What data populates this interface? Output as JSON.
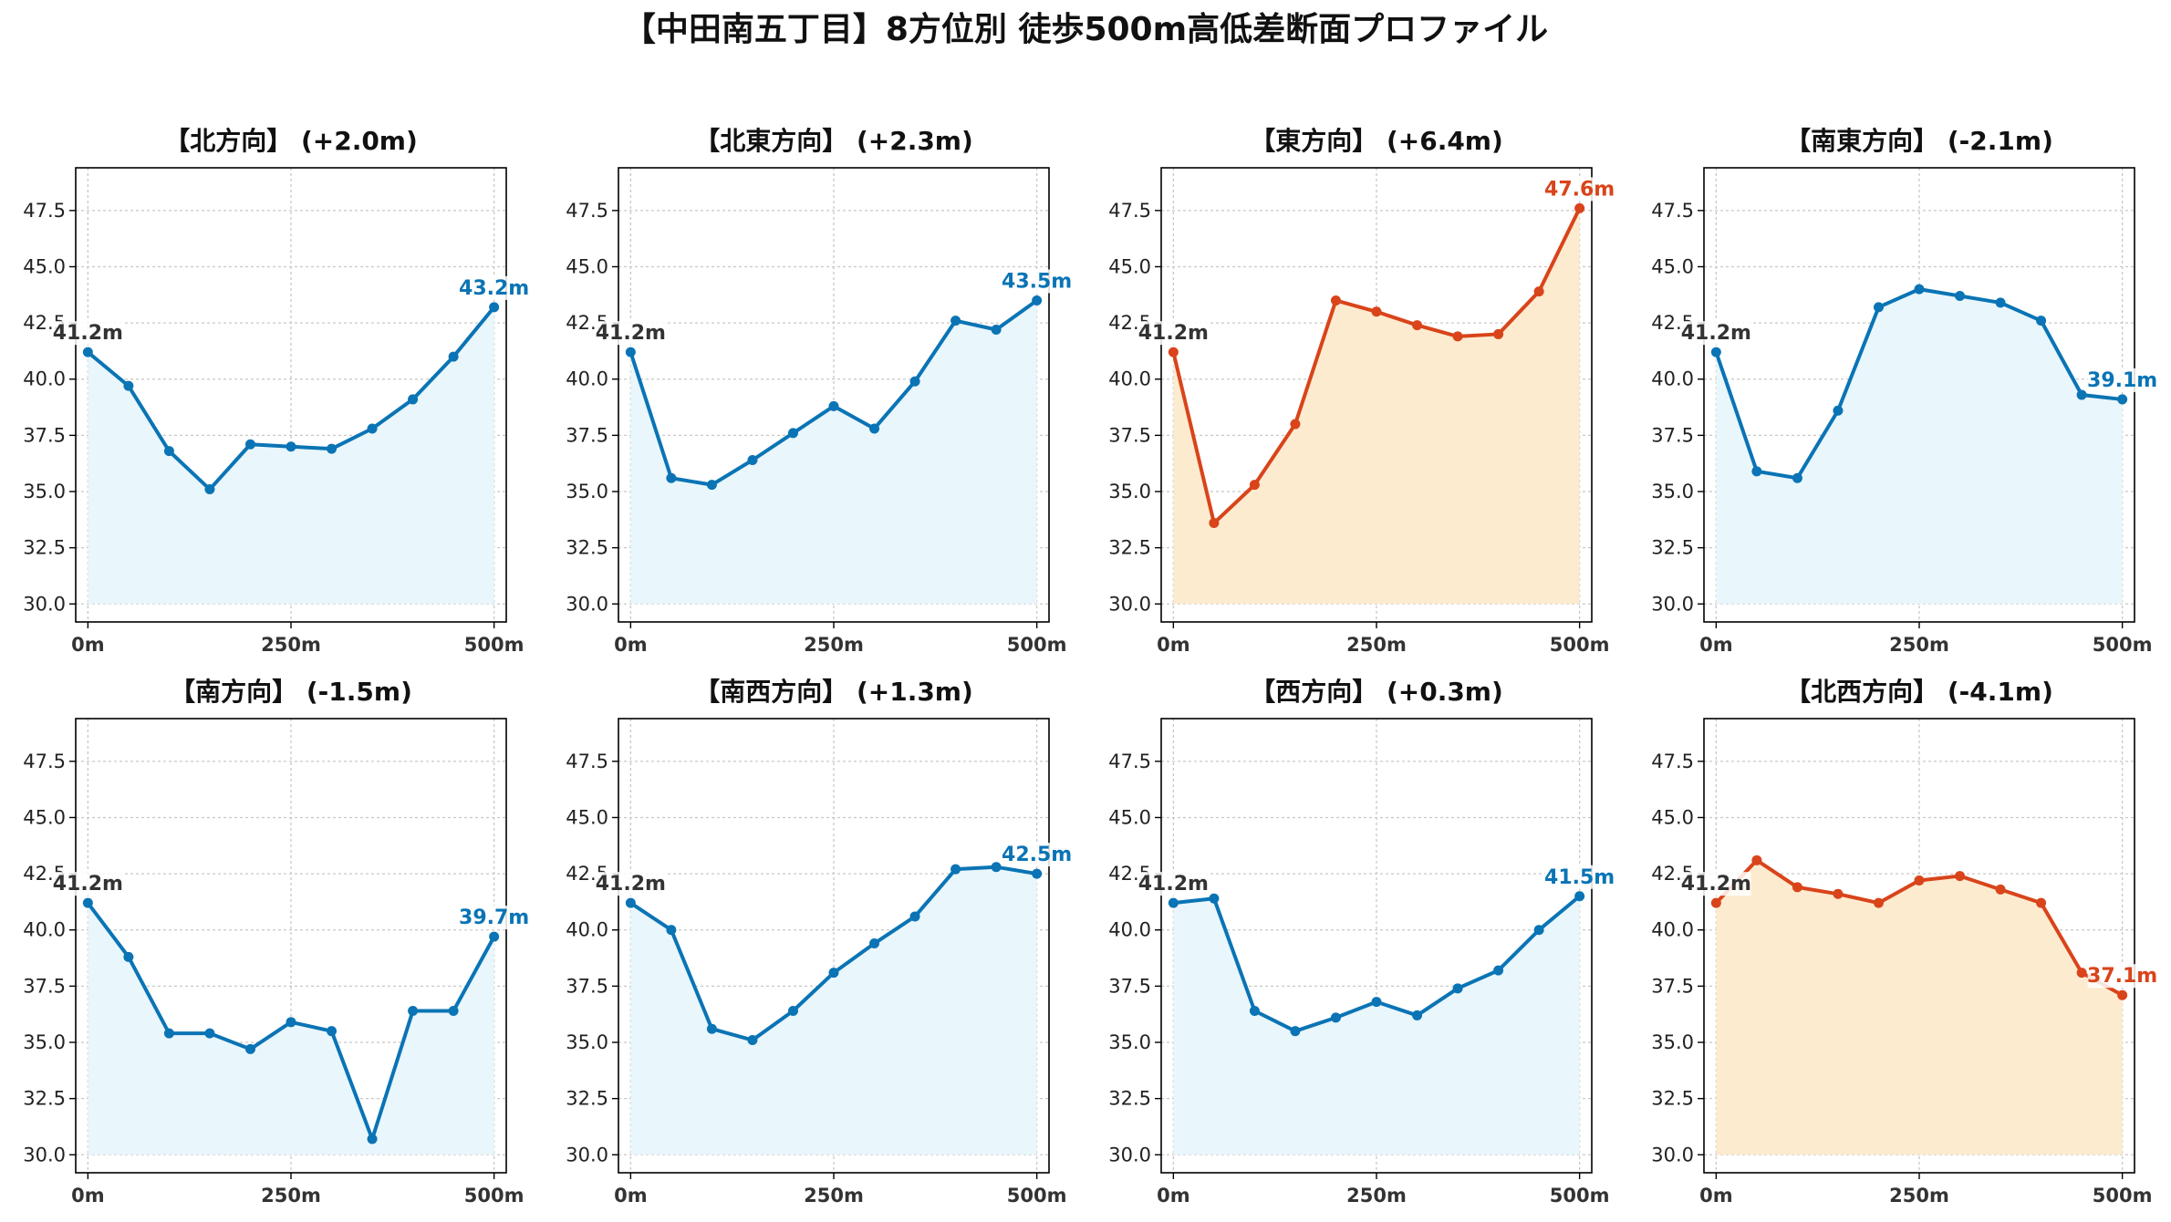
{
  "suptitle": "【中田南五丁目】8方位別 徒歩500m高低差断面プロファイル",
  "colors": {
    "up_line": "#d9441a",
    "up_fill": "#fdebd0",
    "down_line": "#0a74b5",
    "down_fill": "#e9f6fb",
    "start_label": "#333333",
    "grid": "#c8c8c8"
  },
  "chart_data": [
    {
      "type": "line",
      "title": "【北方向】 (+2.0m)",
      "x": [
        0,
        50,
        100,
        150,
        200,
        250,
        300,
        350,
        400,
        450,
        500
      ],
      "values": [
        41.2,
        39.7,
        36.8,
        35.1,
        37.1,
        37.0,
        36.9,
        37.8,
        39.1,
        41.0,
        43.2
      ],
      "start_label": "41.2m",
      "end_label": "43.2m",
      "theme": "down",
      "xticks": [
        "0m",
        "250m",
        "500m"
      ],
      "xlim": [
        -15,
        515
      ],
      "ylim": [
        29.2,
        49.4
      ],
      "yticks": [
        "30.0",
        "32.5",
        "35.0",
        "37.5",
        "40.0",
        "42.5",
        "45.0",
        "47.5"
      ],
      "grid": true
    },
    {
      "type": "line",
      "title": "【北東方向】 (+2.3m)",
      "x": [
        0,
        50,
        100,
        150,
        200,
        250,
        300,
        350,
        400,
        450,
        500
      ],
      "values": [
        41.2,
        35.6,
        35.3,
        36.4,
        37.6,
        38.8,
        37.8,
        39.9,
        42.6,
        42.2,
        43.5
      ],
      "start_label": "41.2m",
      "end_label": "43.5m",
      "theme": "down",
      "xticks": [
        "0m",
        "250m",
        "500m"
      ],
      "xlim": [
        -15,
        515
      ],
      "ylim": [
        29.2,
        49.4
      ],
      "yticks": [
        "30.0",
        "32.5",
        "35.0",
        "37.5",
        "40.0",
        "42.5",
        "45.0",
        "47.5"
      ],
      "grid": true
    },
    {
      "type": "line",
      "title": "【東方向】 (+6.4m)",
      "x": [
        0,
        50,
        100,
        150,
        200,
        250,
        300,
        350,
        400,
        450,
        500
      ],
      "values": [
        41.2,
        33.6,
        35.3,
        38.0,
        43.5,
        43.0,
        42.4,
        41.9,
        42.0,
        43.9,
        47.6
      ],
      "start_label": "41.2m",
      "end_label": "47.6m",
      "theme": "up",
      "xticks": [
        "0m",
        "250m",
        "500m"
      ],
      "xlim": [
        -15,
        515
      ],
      "ylim": [
        29.2,
        49.4
      ],
      "yticks": [
        "30.0",
        "32.5",
        "35.0",
        "37.5",
        "40.0",
        "42.5",
        "45.0",
        "47.5"
      ],
      "grid": true
    },
    {
      "type": "line",
      "title": "【南東方向】 (-2.1m)",
      "x": [
        0,
        50,
        100,
        150,
        200,
        250,
        300,
        350,
        400,
        450,
        500
      ],
      "values": [
        41.2,
        35.9,
        35.6,
        38.6,
        43.2,
        44.0,
        43.7,
        43.4,
        42.6,
        39.3,
        39.1
      ],
      "start_label": "41.2m",
      "end_label": "39.1m",
      "theme": "down",
      "xticks": [
        "0m",
        "250m",
        "500m"
      ],
      "xlim": [
        -15,
        515
      ],
      "ylim": [
        29.2,
        49.4
      ],
      "yticks": [
        "30.0",
        "32.5",
        "35.0",
        "37.5",
        "40.0",
        "42.5",
        "45.0",
        "47.5"
      ],
      "grid": true
    },
    {
      "type": "line",
      "title": "【南方向】 (-1.5m)",
      "x": [
        0,
        50,
        100,
        150,
        200,
        250,
        300,
        350,
        400,
        450,
        500
      ],
      "values": [
        41.2,
        38.8,
        35.4,
        35.4,
        34.7,
        35.9,
        35.5,
        30.7,
        36.4,
        36.4,
        39.7
      ],
      "start_label": "41.2m",
      "end_label": "39.7m",
      "theme": "down",
      "xticks": [
        "0m",
        "250m",
        "500m"
      ],
      "xlim": [
        -15,
        515
      ],
      "ylim": [
        29.2,
        49.4
      ],
      "yticks": [
        "30.0",
        "32.5",
        "35.0",
        "37.5",
        "40.0",
        "42.5",
        "45.0",
        "47.5"
      ],
      "grid": true
    },
    {
      "type": "line",
      "title": "【南西方向】 (+1.3m)",
      "x": [
        0,
        50,
        100,
        150,
        200,
        250,
        300,
        350,
        400,
        450,
        500
      ],
      "values": [
        41.2,
        40.0,
        35.6,
        35.1,
        36.4,
        38.1,
        39.4,
        40.6,
        42.7,
        42.8,
        42.5
      ],
      "start_label": "41.2m",
      "end_label": "42.5m",
      "theme": "down",
      "xticks": [
        "0m",
        "250m",
        "500m"
      ],
      "xlim": [
        -15,
        515
      ],
      "ylim": [
        29.2,
        49.4
      ],
      "yticks": [
        "30.0",
        "32.5",
        "35.0",
        "37.5",
        "40.0",
        "42.5",
        "45.0",
        "47.5"
      ],
      "grid": true
    },
    {
      "type": "line",
      "title": "【西方向】 (+0.3m)",
      "x": [
        0,
        50,
        100,
        150,
        200,
        250,
        300,
        350,
        400,
        450,
        500
      ],
      "values": [
        41.2,
        41.4,
        36.4,
        35.5,
        36.1,
        36.8,
        36.2,
        37.4,
        38.2,
        40.0,
        41.5
      ],
      "start_label": "41.2m",
      "end_label": "41.5m",
      "theme": "down",
      "xticks": [
        "0m",
        "250m",
        "500m"
      ],
      "xlim": [
        -15,
        515
      ],
      "ylim": [
        29.2,
        49.4
      ],
      "yticks": [
        "30.0",
        "32.5",
        "35.0",
        "37.5",
        "40.0",
        "42.5",
        "45.0",
        "47.5"
      ],
      "grid": true
    },
    {
      "type": "line",
      "title": "【北西方向】 (-4.1m)",
      "x": [
        0,
        50,
        100,
        150,
        200,
        250,
        300,
        350,
        400,
        450,
        500
      ],
      "values": [
        41.2,
        43.1,
        41.9,
        41.6,
        41.2,
        42.2,
        42.4,
        41.8,
        41.2,
        38.1,
        37.1
      ],
      "start_label": "41.2m",
      "end_label": "37.1m",
      "theme": "up",
      "xticks": [
        "0m",
        "250m",
        "500m"
      ],
      "xlim": [
        -15,
        515
      ],
      "ylim": [
        29.2,
        49.4
      ],
      "yticks": [
        "30.0",
        "32.5",
        "35.0",
        "37.5",
        "40.0",
        "42.5",
        "45.0",
        "47.5"
      ],
      "grid": true
    }
  ]
}
